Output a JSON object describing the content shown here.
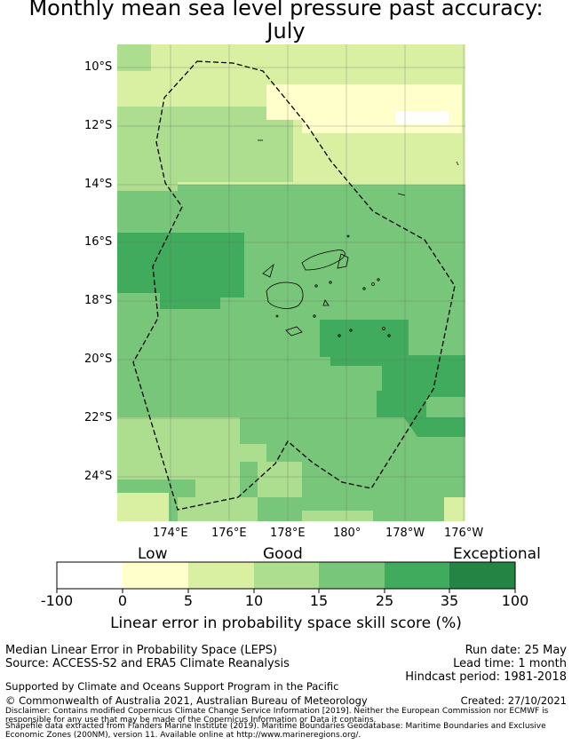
{
  "title": {
    "line1": "Monthly mean sea level pressure past accuracy:",
    "line2": "July"
  },
  "map": {
    "lat_labels": [
      "10°S",
      "12°S",
      "14°S",
      "16°S",
      "18°S",
      "20°S",
      "22°S",
      "24°S"
    ],
    "lon_labels": [
      "174°E",
      "176°E",
      "178°E",
      "180°",
      "178°W",
      "176°W"
    ],
    "boundary": "dashed EEZ outline",
    "land": "Fiji islands"
  },
  "colorbar": {
    "categories": [
      "Low",
      "Good",
      "Exceptional"
    ],
    "ticks": [
      "-100",
      "0",
      "5",
      "10",
      "15",
      "25",
      "35",
      "100"
    ],
    "colors": [
      "#ffffff",
      "#ffffcc",
      "#d9f0a3",
      "#addd8e",
      "#78c679",
      "#41ab5d",
      "#238443"
    ],
    "label": "Linear error in probability space skill score (%)"
  },
  "info": {
    "method": "Median Linear Error in Probability Space (LEPS)",
    "source": "Source: ACCESS-S2 and ERA5 Climate Reanalysis",
    "run_date": "Run date: 25 May",
    "lead_time": "Lead time: 1 month",
    "hindcast": "Hindcast period: 1981-2018",
    "support": "Supported by Climate and Oceans Support Program in the Pacific",
    "copyright": "© Commonwealth of Australia 2021, Australian Bureau of Meteorology",
    "created": "Created: 27/10/2021",
    "disclaimer1": "Disclaimer: Contains modified Copernicus Climate Change Service Information [2019]. Neither the European Commission nor ECMWF is",
    "disclaimer2": "responsible for any use that may be made of the Copernicus Information or Data it contains.",
    "shapefile1": "Shapefile data extracted from Flanders Marine Institute (2019). Maritime Boundaries Geodatabase: Maritime Boundaries and Exclusive",
    "shapefile2": "Economic Zones (200NM), version 11. Available online at http://www.marineregions.org/."
  }
}
